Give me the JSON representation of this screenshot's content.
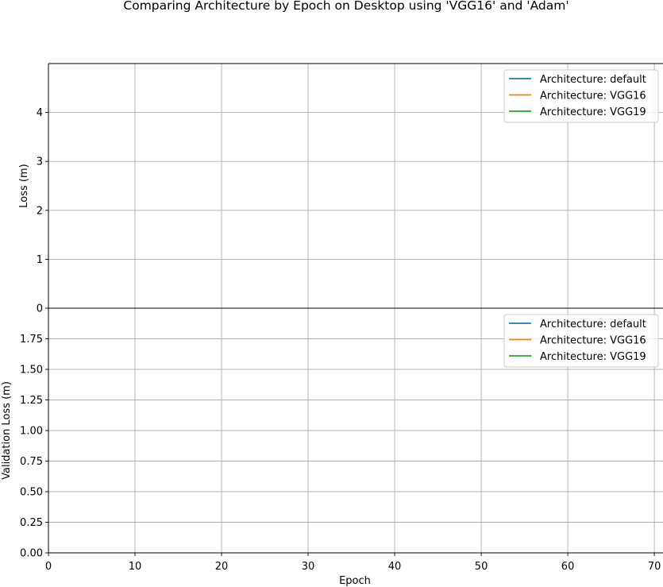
{
  "chart_data": {
    "title": "Comparing Architecture by Epoch on Desktop using 'VGG16' and 'Adam'",
    "xlabel": "Epoch",
    "xlim": [
      0,
      71
    ],
    "xticks": [
      0,
      10,
      20,
      30,
      40,
      50,
      60,
      70
    ],
    "grid": true,
    "legend_placement": "top-right",
    "colors": {
      "default": "#1f77b4",
      "VGG16": "#ff7f0e",
      "VGG19": "#2ca02c",
      "grid": "#b0b0b0"
    },
    "subplots": [
      {
        "type": "line",
        "ylabel": "Loss (m)",
        "ylim": [
          0,
          5
        ],
        "yticks": [
          "0",
          "1",
          "2",
          "3",
          "4"
        ],
        "ytick_values": [
          0,
          1,
          2,
          3,
          4
        ],
        "series": [
          {
            "name": "Architecture: default",
            "x": [],
            "y": []
          },
          {
            "name": "Architecture: VGG16",
            "x": [],
            "y": []
          },
          {
            "name": "Architecture: VGG19",
            "x": [],
            "y": []
          }
        ]
      },
      {
        "type": "line",
        "ylabel": "Validation Loss (m)",
        "ylim": [
          0,
          2
        ],
        "yticks": [
          "0.00",
          "0.25",
          "0.50",
          "0.75",
          "1.00",
          "1.25",
          "1.50",
          "1.75"
        ],
        "ytick_values": [
          0,
          0.25,
          0.5,
          0.75,
          1.0,
          1.25,
          1.5,
          1.75
        ],
        "series": [
          {
            "name": "Architecture: default",
            "x": [],
            "y": []
          },
          {
            "name": "Architecture: VGG16",
            "x": [],
            "y": []
          },
          {
            "name": "Architecture: VGG19",
            "x": [],
            "y": []
          }
        ]
      }
    ]
  }
}
